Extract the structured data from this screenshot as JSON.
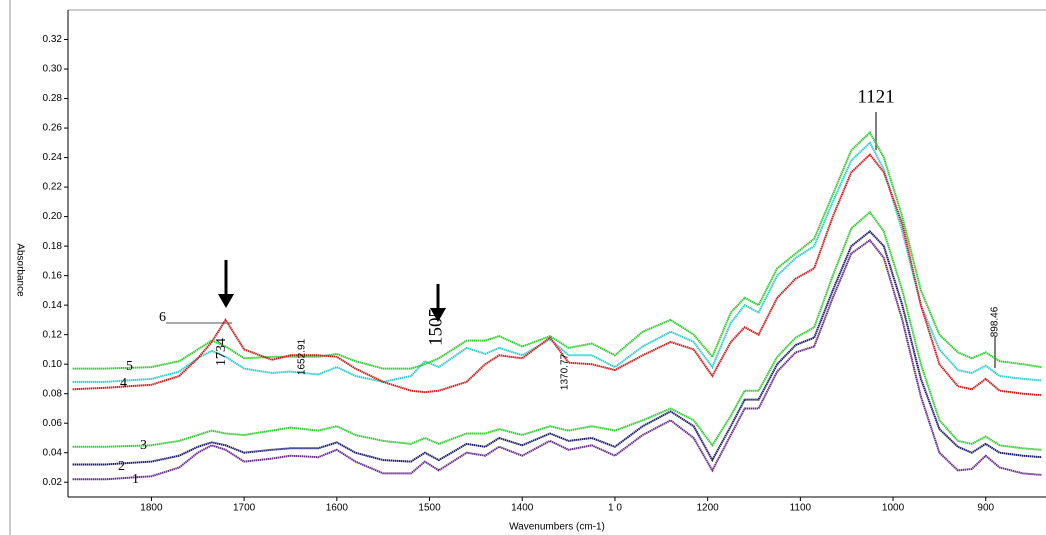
{
  "chart_data": {
    "type": "line",
    "y_label": "Absorbance",
    "x_label": "Wavenumbers (cm-1)",
    "x": [
      1885,
      1850,
      1800,
      1770,
      1750,
      1735,
      1720,
      1700,
      1670,
      1650,
      1620,
      1600,
      1580,
      1550,
      1520,
      1505,
      1490,
      1460,
      1440,
      1425,
      1400,
      1370,
      1350,
      1325,
      1300,
      1270,
      1240,
      1215,
      1195,
      1175,
      1160,
      1145,
      1125,
      1105,
      1085,
      1065,
      1045,
      1025,
      1010,
      990,
      970,
      950,
      930,
      915,
      900,
      885,
      860,
      840
    ],
    "series": [
      {
        "name": "1",
        "color": "#6b2c8c",
        "values": [
          0.022,
          0.022,
          0.024,
          0.03,
          0.04,
          0.045,
          0.042,
          0.034,
          0.036,
          0.038,
          0.037,
          0.042,
          0.034,
          0.026,
          0.026,
          0.034,
          0.028,
          0.04,
          0.038,
          0.044,
          0.038,
          0.048,
          0.042,
          0.045,
          0.038,
          0.052,
          0.062,
          0.05,
          0.028,
          0.052,
          0.07,
          0.07,
          0.095,
          0.108,
          0.112,
          0.145,
          0.175,
          0.184,
          0.172,
          0.13,
          0.078,
          0.04,
          0.028,
          0.029,
          0.038,
          0.03,
          0.026,
          0.025
        ]
      },
      {
        "name": "2",
        "color": "#1c1c6e",
        "values": [
          0.032,
          0.032,
          0.034,
          0.038,
          0.044,
          0.047,
          0.045,
          0.04,
          0.042,
          0.043,
          0.043,
          0.047,
          0.04,
          0.035,
          0.034,
          0.04,
          0.035,
          0.046,
          0.044,
          0.05,
          0.045,
          0.053,
          0.048,
          0.05,
          0.044,
          0.058,
          0.068,
          0.058,
          0.035,
          0.058,
          0.076,
          0.076,
          0.1,
          0.113,
          0.118,
          0.15,
          0.18,
          0.19,
          0.18,
          0.14,
          0.09,
          0.056,
          0.044,
          0.04,
          0.046,
          0.04,
          0.038,
          0.037
        ]
      },
      {
        "name": "3",
        "color": "#33cc33",
        "values": [
          0.044,
          0.044,
          0.045,
          0.048,
          0.052,
          0.055,
          0.053,
          0.052,
          0.055,
          0.057,
          0.055,
          0.058,
          0.052,
          0.048,
          0.046,
          0.05,
          0.046,
          0.053,
          0.053,
          0.056,
          0.052,
          0.058,
          0.055,
          0.058,
          0.055,
          0.062,
          0.07,
          0.062,
          0.045,
          0.065,
          0.082,
          0.082,
          0.105,
          0.118,
          0.125,
          0.16,
          0.192,
          0.203,
          0.19,
          0.15,
          0.1,
          0.062,
          0.048,
          0.046,
          0.051,
          0.045,
          0.043,
          0.042
        ]
      },
      {
        "name": "4",
        "color": "#33cccc",
        "values": [
          0.088,
          0.088,
          0.09,
          0.095,
          0.104,
          0.109,
          0.105,
          0.097,
          0.094,
          0.095,
          0.093,
          0.098,
          0.092,
          0.088,
          0.092,
          0.102,
          0.098,
          0.111,
          0.107,
          0.111,
          0.106,
          0.117,
          0.106,
          0.106,
          0.098,
          0.112,
          0.122,
          0.115,
          0.098,
          0.128,
          0.14,
          0.135,
          0.16,
          0.172,
          0.18,
          0.21,
          0.238,
          0.25,
          0.232,
          0.19,
          0.14,
          0.11,
          0.096,
          0.094,
          0.099,
          0.092,
          0.09,
          0.089
        ]
      },
      {
        "name": "5",
        "color": "#33cc33",
        "values": [
          0.097,
          0.097,
          0.098,
          0.102,
          0.11,
          0.116,
          0.112,
          0.104,
          0.105,
          0.105,
          0.105,
          0.107,
          0.102,
          0.097,
          0.097,
          0.1,
          0.104,
          0.116,
          0.116,
          0.119,
          0.112,
          0.119,
          0.111,
          0.114,
          0.106,
          0.122,
          0.13,
          0.12,
          0.105,
          0.135,
          0.145,
          0.14,
          0.165,
          0.175,
          0.185,
          0.215,
          0.245,
          0.257,
          0.24,
          0.2,
          0.15,
          0.12,
          0.108,
          0.104,
          0.108,
          0.102,
          0.1,
          0.098
        ]
      },
      {
        "name": "6",
        "color": "#cc2222",
        "values": [
          0.083,
          0.084,
          0.086,
          0.092,
          0.104,
          0.115,
          0.13,
          0.11,
          0.103,
          0.106,
          0.106,
          0.105,
          0.097,
          0.088,
          0.082,
          0.081,
          0.082,
          0.088,
          0.1,
          0.106,
          0.104,
          0.118,
          0.101,
          0.1,
          0.096,
          0.106,
          0.115,
          0.11,
          0.092,
          0.115,
          0.125,
          0.12,
          0.145,
          0.158,
          0.165,
          0.2,
          0.23,
          0.242,
          0.23,
          0.195,
          0.14,
          0.1,
          0.085,
          0.083,
          0.09,
          0.082,
          0.08,
          0.079
        ]
      }
    ],
    "xlim": [
      1890,
      835
    ],
    "xticks": [
      1800,
      1700,
      1600,
      1500,
      1400,
      {
        "value": 1300,
        "label": "1 0"
      },
      1200,
      1100,
      1000,
      900
    ],
    "ylim": [
      0.01,
      0.34
    ],
    "yticks": [
      0.02,
      0.04,
      0.06,
      0.08,
      {
        "value": 0.1,
        "label": "0.10"
      },
      0.12,
      0.14,
      0.16,
      0.18,
      {
        "value": 0.2,
        "label": "0.20"
      },
      0.22,
      0.24,
      0.26,
      0.28,
      {
        "value": 0.3,
        "label": "0.30"
      },
      0.32
    ],
    "annotations": [
      "1734",
      "1505",
      "1121",
      "1652.91",
      "1370.77",
      "898.46"
    ]
  }
}
